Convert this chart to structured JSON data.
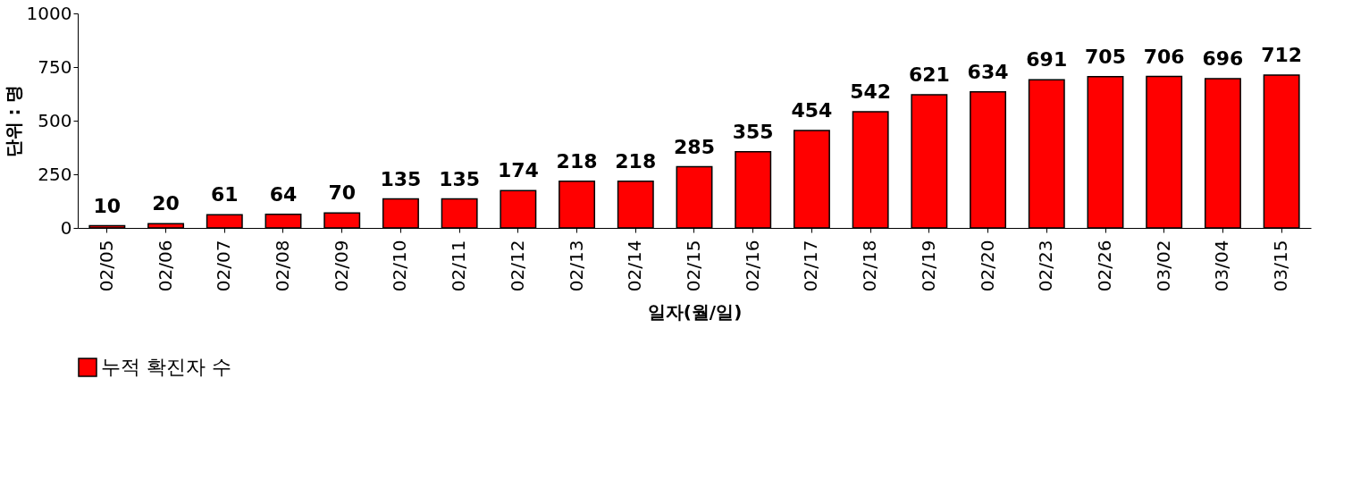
{
  "chart_data": {
    "type": "bar",
    "xlabel": "일자(월/일)",
    "ylabel": "단위 : 명",
    "categories": [
      "02/05",
      "02/06",
      "02/07",
      "02/08",
      "02/09",
      "02/10",
      "02/11",
      "02/12",
      "02/13",
      "02/14",
      "02/15",
      "02/16",
      "02/17",
      "02/18",
      "02/19",
      "02/20",
      "02/23",
      "02/26",
      "03/02",
      "03/04",
      "03/15"
    ],
    "series": [
      {
        "name": "누적 확진자 수",
        "color": "#ff0000",
        "values": [
          10,
          20,
          61,
          64,
          70,
          135,
          135,
          174,
          218,
          218,
          285,
          355,
          454,
          542,
          621,
          634,
          691,
          705,
          706,
          696,
          712
        ]
      }
    ],
    "ylim": [
      0,
      1000
    ],
    "yticks": [
      0,
      250,
      500,
      750,
      1000
    ],
    "grid": false,
    "legend": "bottom",
    "data_labels": true
  }
}
